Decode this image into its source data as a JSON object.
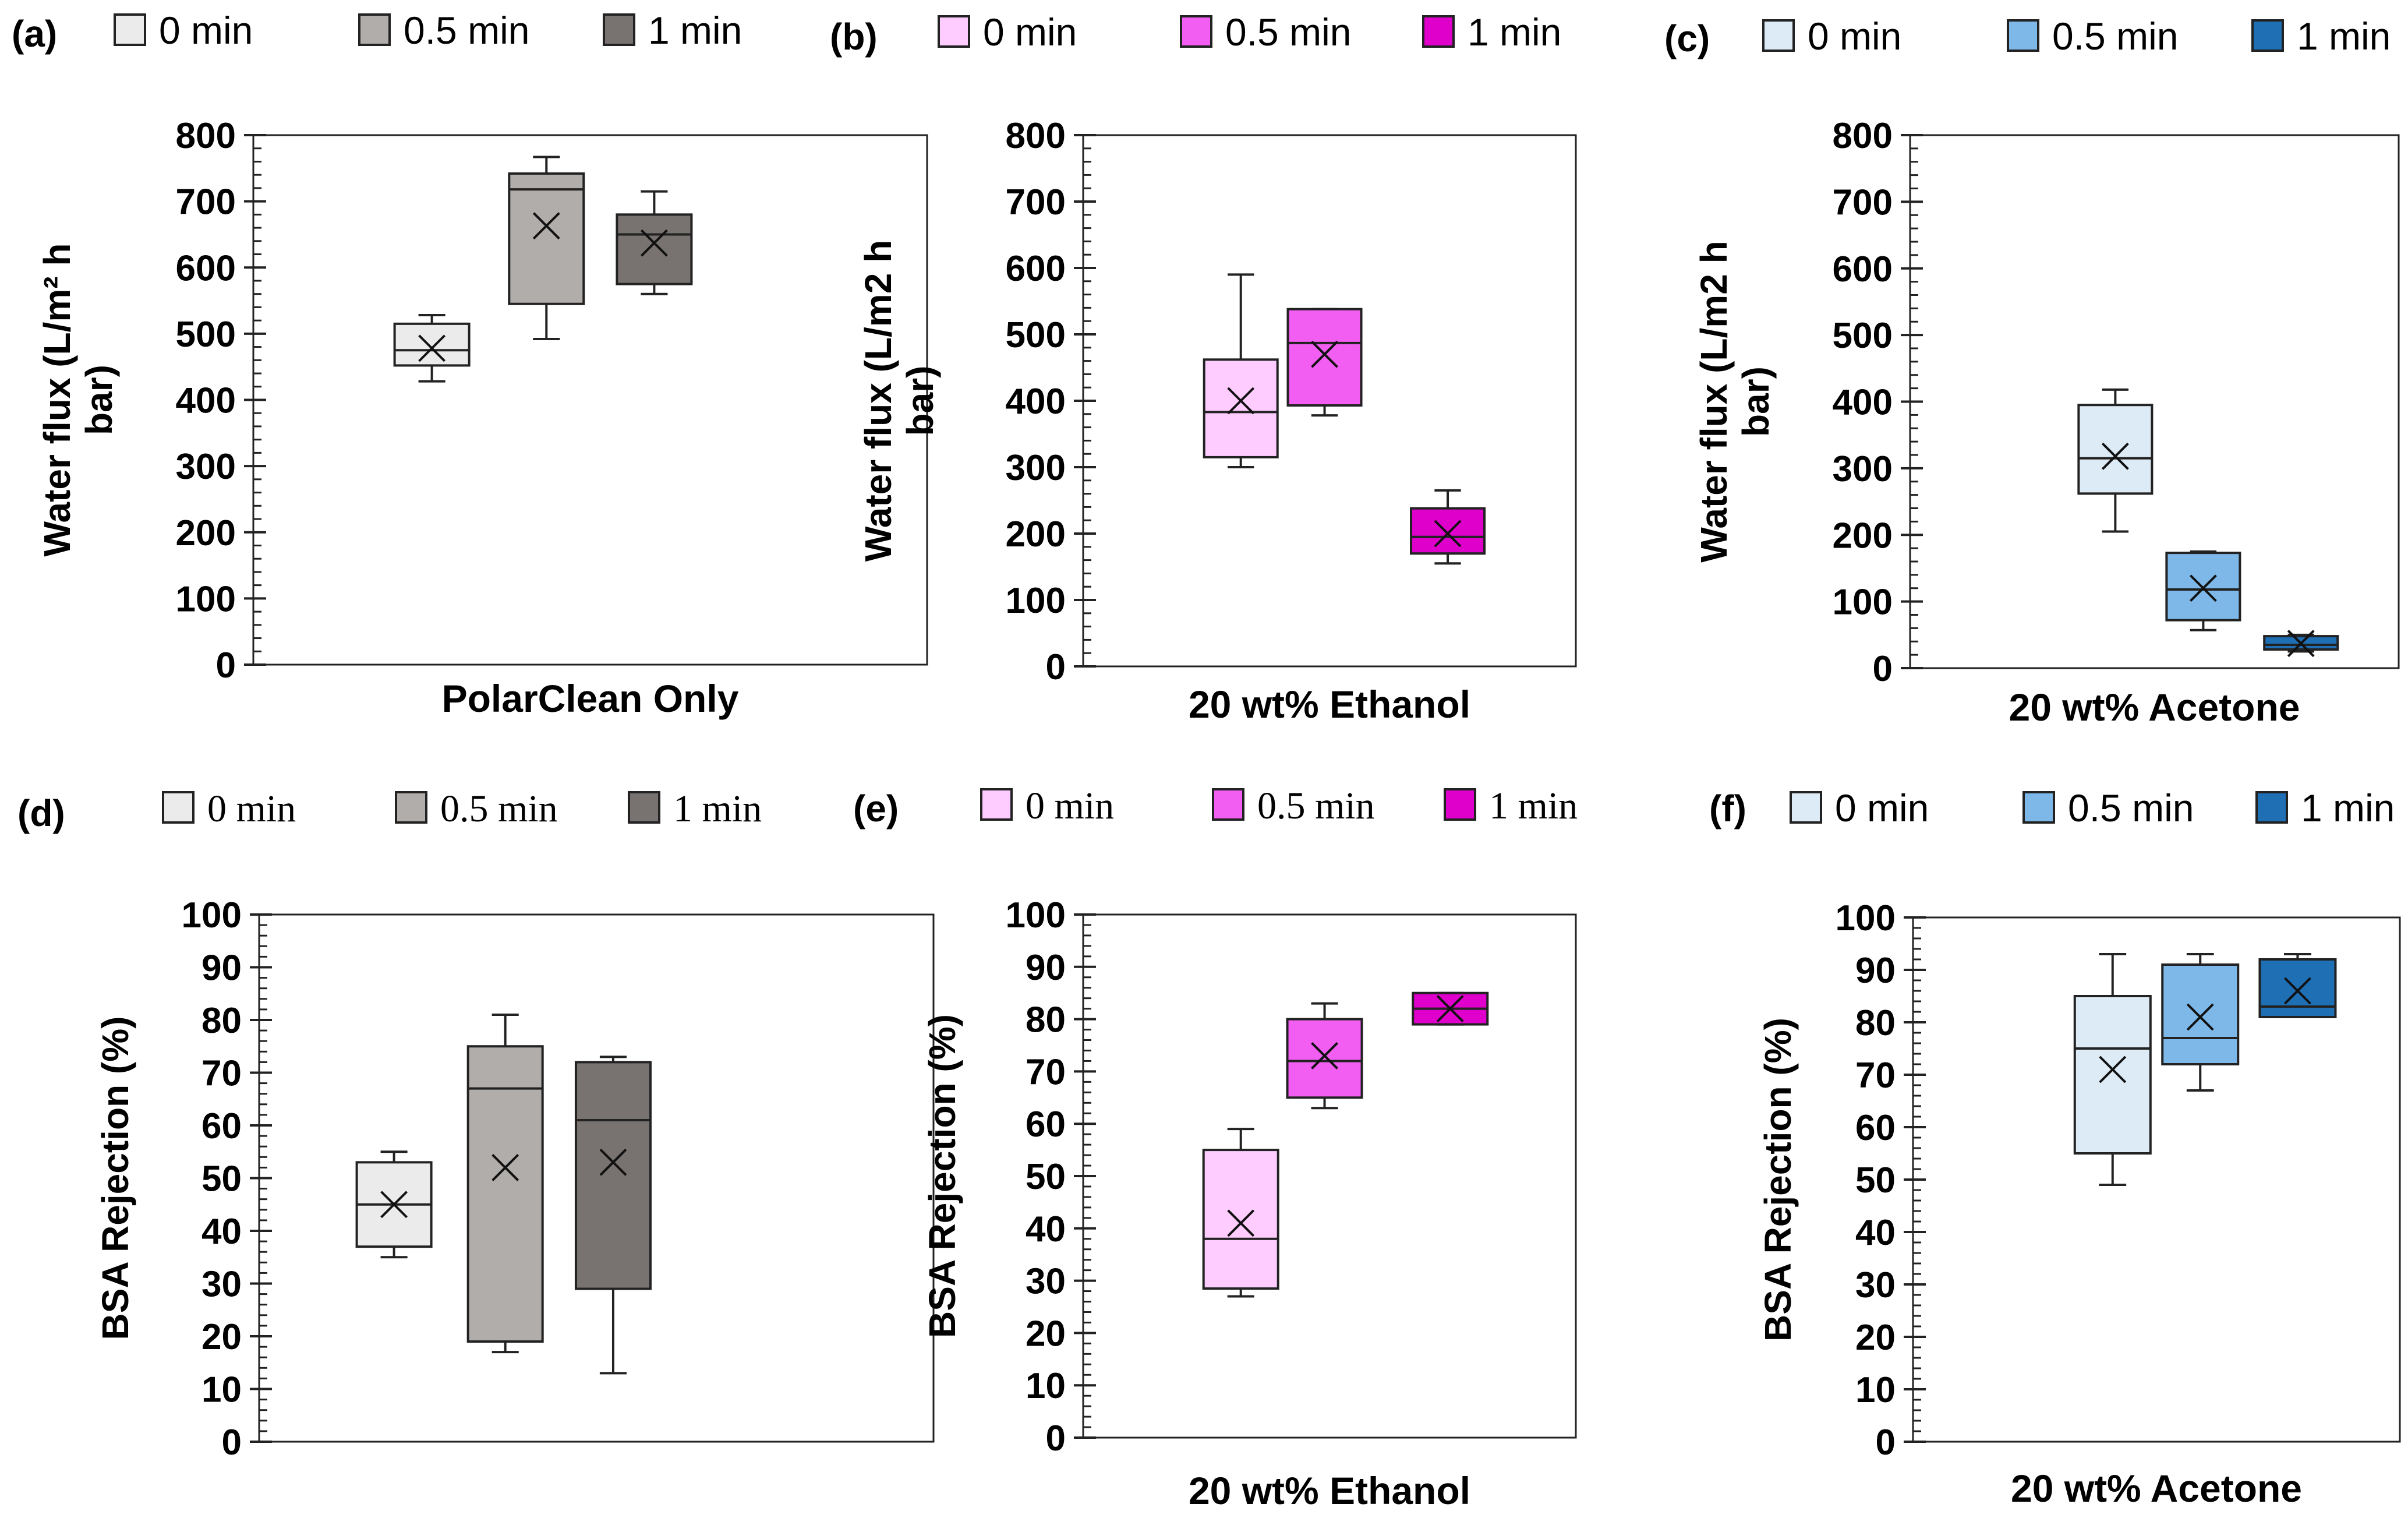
{
  "chart_data": [
    {
      "panel": "(a)",
      "type": "box",
      "title": "",
      "xlabel": "PolarClean Only",
      "ylabel_lines": [
        "Water flux (L/m² h",
        "bar)"
      ],
      "ylim": [
        0,
        800
      ],
      "yticks": [
        0,
        100,
        200,
        300,
        400,
        500,
        600,
        700,
        800
      ],
      "tick_labels": [
        "0",
        "100",
        "200",
        "300",
        "400",
        "500",
        "600",
        "700",
        "800"
      ],
      "legend_font": "sans",
      "legend_position": "top",
      "series": [
        {
          "name": "0 min",
          "color": "#ebebeb",
          "min": 428,
          "q1": 452,
          "median": 475,
          "q3": 515,
          "max": 528,
          "mean": 478
        },
        {
          "name": "0.5 min",
          "color": "#b1adab",
          "min": 492,
          "q1": 545,
          "median": 718,
          "q3": 742,
          "max": 767,
          "mean": 663
        },
        {
          "name": "1 min",
          "color": "#787270",
          "min": 560,
          "q1": 575,
          "median": 650,
          "q3": 680,
          "max": 715,
          "mean": 637
        }
      ]
    },
    {
      "panel": "(b)",
      "type": "box",
      "title": "",
      "xlabel": "20 wt% Ethanol",
      "ylabel_lines": [
        "Water flux (L/m2 h",
        "bar)"
      ],
      "ylim": [
        0,
        800
      ],
      "yticks": [
        0,
        100,
        200,
        300,
        400,
        500,
        600,
        700,
        800
      ],
      "tick_labels": [
        "0",
        "100",
        "200",
        "300",
        "400",
        "500",
        "600",
        "700",
        "800"
      ],
      "legend_font": "sans",
      "legend_position": "top",
      "series": [
        {
          "name": "0 min",
          "color": "#ffccff",
          "min": 300,
          "q1": 315,
          "median": 383,
          "q3": 462,
          "max": 590,
          "mean": 400
        },
        {
          "name": "0.5 min",
          "color": "#f25ef2",
          "min": 378,
          "q1": 393,
          "median": 487,
          "q3": 538,
          "max": 538,
          "mean": 470
        },
        {
          "name": "1 min",
          "color": "#e000cc",
          "min": 155,
          "q1": 170,
          "median": 195,
          "q3": 238,
          "max": 265,
          "mean": 200
        }
      ]
    },
    {
      "panel": "(c)",
      "type": "box",
      "title": "",
      "xlabel": "20 wt% Acetone",
      "ylabel_lines": [
        "Water flux (L/m2 h",
        "bar)"
      ],
      "ylim": [
        0,
        800
      ],
      "yticks": [
        0,
        100,
        200,
        300,
        400,
        500,
        600,
        700,
        800
      ],
      "tick_labels": [
        "0",
        "100",
        "200",
        "300",
        "400",
        "500",
        "600",
        "700",
        "800"
      ],
      "legend_font": "sans",
      "legend_position": "top",
      "series": [
        {
          "name": "0 min",
          "color": "#ddebf7",
          "min": 205,
          "q1": 262,
          "median": 315,
          "q3": 395,
          "max": 418,
          "mean": 318
        },
        {
          "name": "0.5 min",
          "color": "#7db8e8",
          "min": 57,
          "q1": 72,
          "median": 118,
          "q3": 173,
          "max": 175,
          "mean": 120
        },
        {
          "name": "1 min",
          "color": "#1f6fb4",
          "min": 25,
          "q1": 28,
          "median": 35,
          "q3": 48,
          "max": 50,
          "mean": 37
        }
      ]
    },
    {
      "panel": "(d)",
      "type": "box",
      "title": "",
      "xlabel": "",
      "ylabel_lines": [
        "BSA Rejection (%)"
      ],
      "ylim": [
        0,
        100
      ],
      "yticks": [
        0,
        10,
        20,
        30,
        40,
        50,
        60,
        70,
        80,
        90,
        100
      ],
      "tick_labels": [
        "0",
        "10",
        "20",
        "30",
        "40",
        "50",
        "60",
        "70",
        "80",
        "90",
        "100"
      ],
      "legend_font": "serif",
      "legend_position": "top",
      "series": [
        {
          "name": "0 min",
          "color": "#ebebeb",
          "min": 35,
          "q1": 37,
          "median": 45,
          "q3": 53,
          "max": 55,
          "mean": 45
        },
        {
          "name": "0.5 min",
          "color": "#b1adab",
          "min": 17,
          "q1": 19,
          "median": 67,
          "q3": 75,
          "max": 81,
          "mean": 52
        },
        {
          "name": "1 min",
          "color": "#787270",
          "min": 13,
          "q1": 29,
          "median": 61,
          "q3": 72,
          "max": 73,
          "mean": 53
        }
      ]
    },
    {
      "panel": "(e)",
      "type": "box",
      "title": "",
      "xlabel": "20 wt% Ethanol",
      "ylabel_lines": [
        "BSA Rejection (%)"
      ],
      "ylim": [
        0,
        100
      ],
      "yticks": [
        0,
        10,
        20,
        30,
        40,
        50,
        60,
        70,
        80,
        90,
        100
      ],
      "tick_labels": [
        "0",
        "10",
        "20",
        "30",
        "40",
        "50",
        "60",
        "70",
        "80",
        "90",
        "100"
      ],
      "legend_font": "serif",
      "legend_position": "top",
      "series": [
        {
          "name": "0 min",
          "color": "#ffccff",
          "min": 27,
          "q1": 28.5,
          "median": 38,
          "q3": 55,
          "max": 59,
          "mean": 41
        },
        {
          "name": "0.5 min",
          "color": "#f25ef2",
          "min": 63,
          "q1": 65,
          "median": 72,
          "q3": 80,
          "max": 83,
          "mean": 73
        },
        {
          "name": "1 min",
          "color": "#e000cc",
          "min": 79,
          "q1": 79,
          "median": 82,
          "q3": 85,
          "max": 85,
          "mean": 82
        }
      ]
    },
    {
      "panel": "(f)",
      "type": "box",
      "title": "",
      "xlabel": "20 wt% Acetone",
      "ylabel_lines": [
        "BSA Rejection (%)"
      ],
      "ylim": [
        0,
        100
      ],
      "yticks": [
        0,
        10,
        20,
        30,
        40,
        50,
        60,
        70,
        80,
        90,
        100
      ],
      "tick_labels": [
        "0",
        "10",
        "20",
        "30",
        "40",
        "50",
        "60",
        "70",
        "80",
        "90",
        "100"
      ],
      "legend_font": "sans",
      "legend_position": "top",
      "series": [
        {
          "name": "0 min",
          "color": "#ddebf7",
          "min": 49,
          "q1": 55,
          "median": 75,
          "q3": 85,
          "max": 93,
          "mean": 71
        },
        {
          "name": "0.5 min",
          "color": "#7db8e8",
          "min": 67,
          "q1": 72,
          "median": 77,
          "q3": 91,
          "max": 93,
          "mean": 81
        },
        {
          "name": "1 min",
          "color": "#1f6fb4",
          "min": 81,
          "q1": 81,
          "median": 83,
          "q3": 92,
          "max": 93,
          "mean": 86
        }
      ]
    }
  ]
}
